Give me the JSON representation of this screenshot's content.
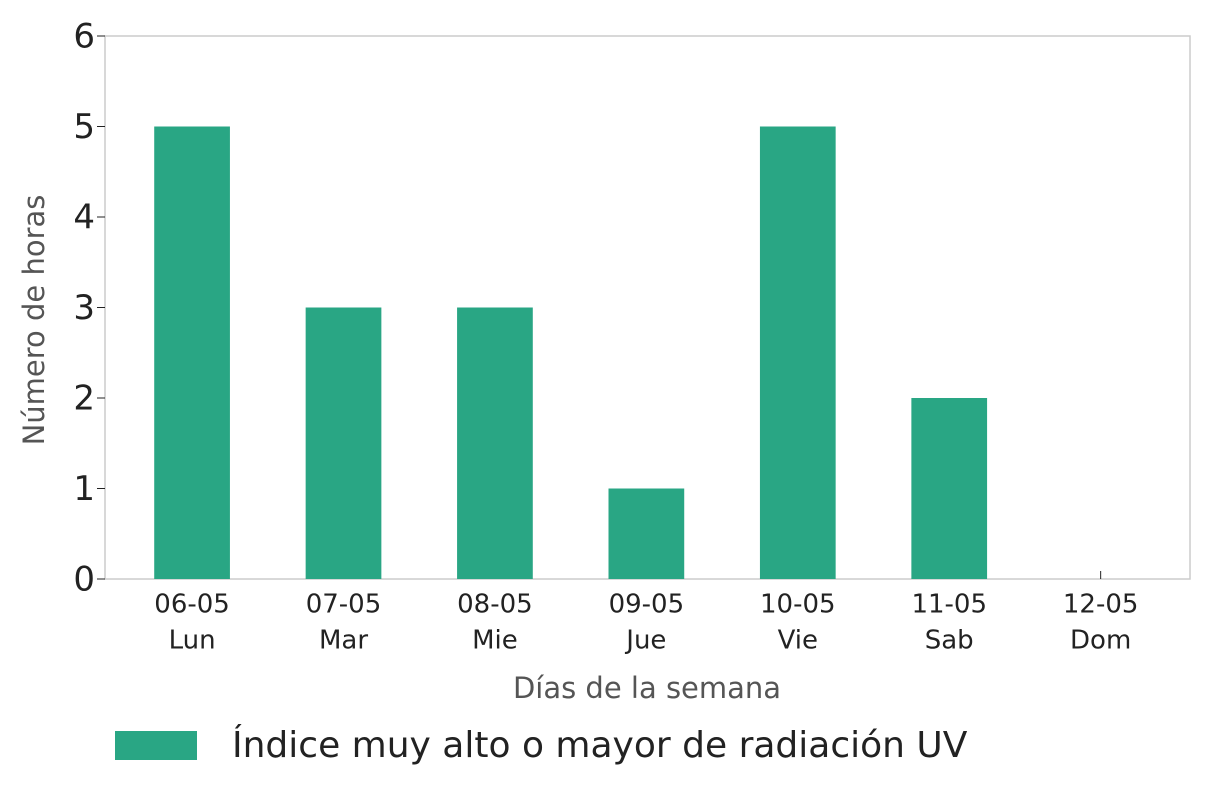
{
  "chart_data": {
    "type": "bar",
    "categories": [
      "06-05",
      "07-05",
      "08-05",
      "09-05",
      "10-05",
      "11-05",
      "12-05"
    ],
    "day_labels": [
      "Lun",
      "Mar",
      "Mie",
      "Jue",
      "Vie",
      "Sab",
      "Dom"
    ],
    "series": [
      {
        "name": "Índice muy alto o mayor de radiación UV",
        "color": "#29a684",
        "values": [
          5,
          3,
          3,
          1,
          5,
          2,
          0
        ]
      }
    ],
    "ylim": [
      0,
      6
    ],
    "yticks": [
      0,
      1,
      2,
      3,
      4,
      5,
      6
    ],
    "xlabel": "Días de la semana",
    "ylabel": "Número de horas",
    "legend": "bottom-left"
  }
}
